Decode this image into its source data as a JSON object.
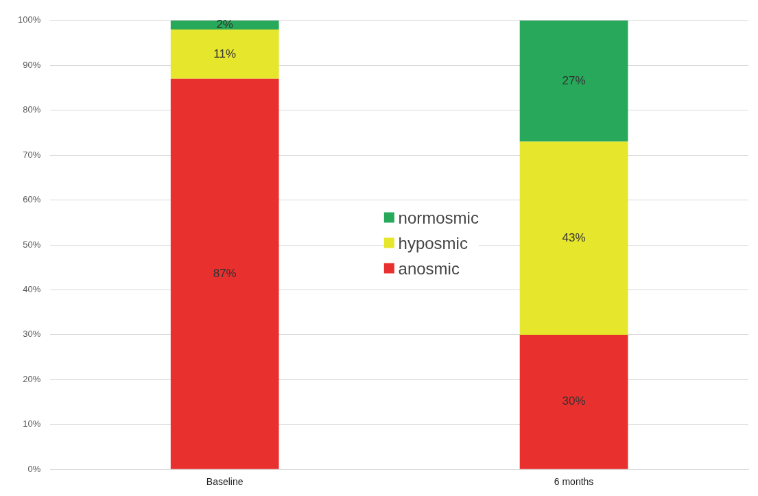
{
  "chart_data": {
    "type": "bar",
    "stacked": true,
    "categories": [
      "Baseline",
      "6 months"
    ],
    "series": [
      {
        "name": "anosmic",
        "color": "#e8302e",
        "values": [
          87,
          30
        ],
        "value_labels": [
          "87%",
          "30%"
        ]
      },
      {
        "name": "hyposmic",
        "color": "#e6e62c",
        "values": [
          11,
          43
        ],
        "value_labels": [
          "11%",
          "43%"
        ]
      },
      {
        "name": "normosmic",
        "color": "#27a85a",
        "values": [
          2,
          27
        ],
        "value_labels": [
          "2%",
          "27%"
        ]
      }
    ],
    "ylim": [
      0,
      100
    ],
    "yticks": [
      {
        "value": 0,
        "label": "0%"
      },
      {
        "value": 10,
        "label": "10%"
      },
      {
        "value": 20,
        "label": "20%"
      },
      {
        "value": 30,
        "label": "30%"
      },
      {
        "value": 40,
        "label": "40%"
      },
      {
        "value": 50,
        "label": "50%"
      },
      {
        "value": 60,
        "label": "60%"
      },
      {
        "value": 70,
        "label": "70%"
      },
      {
        "value": 80,
        "label": "80%"
      },
      {
        "value": 90,
        "label": "90%"
      },
      {
        "value": 100,
        "label": "100%"
      }
    ],
    "grid": "y",
    "legend": "center"
  }
}
